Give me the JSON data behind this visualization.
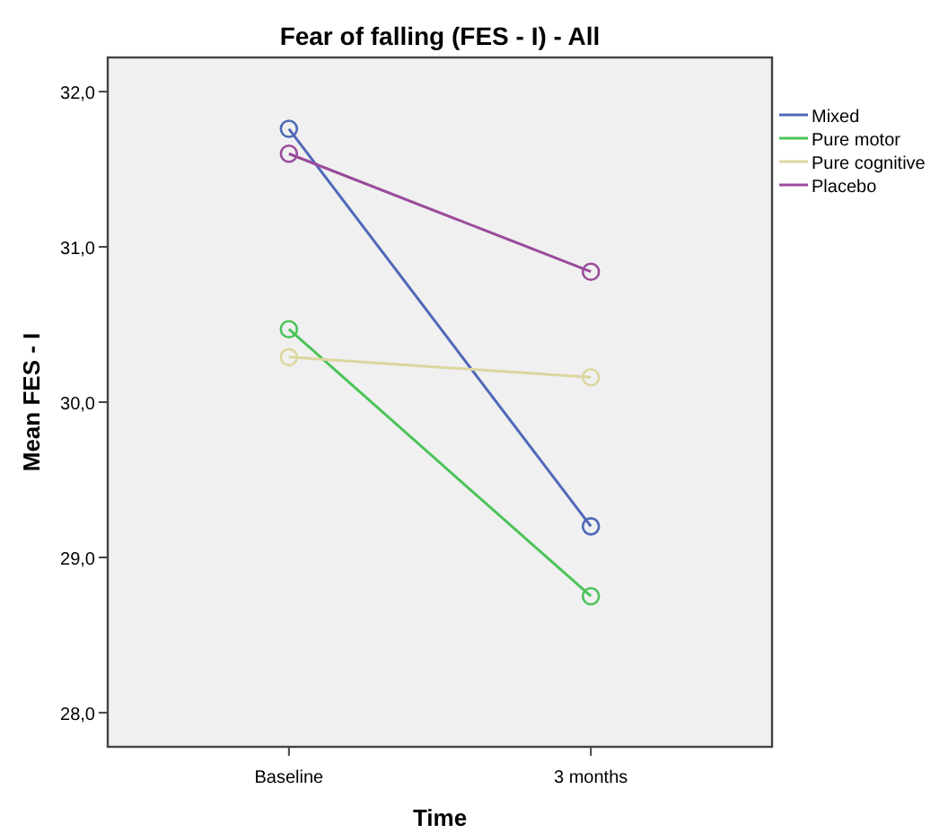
{
  "chart_data": {
    "type": "line",
    "title": "Fear of falling (FES - I) - All",
    "xlabel": "Time",
    "ylabel": "Mean FES - I",
    "categories": [
      "Baseline",
      "3 months"
    ],
    "series": [
      {
        "name": "Mixed",
        "color": "#5068b8",
        "values": [
          31.76,
          29.2
        ]
      },
      {
        "name": "Pure motor",
        "color": "#4cc35a",
        "values": [
          30.47,
          28.75
        ]
      },
      {
        "name": "Pure cognitive",
        "color": "#dcd6a0",
        "values": [
          30.29,
          30.16
        ]
      },
      {
        "name": "Placebo",
        "color": "#9a4a9c",
        "values": [
          31.6,
          30.84
        ]
      }
    ],
    "ylim": [
      27.78,
      32.22
    ],
    "yticks": [
      {
        "value": 28,
        "label": "28,0"
      },
      {
        "value": 29,
        "label": "29,0"
      },
      {
        "value": 30,
        "label": "30,0"
      },
      {
        "value": 31,
        "label": "31,0"
      },
      {
        "value": 32,
        "label": "32,0"
      }
    ],
    "grid": false,
    "legend": "top right",
    "marker": "circle",
    "line_style": "solid"
  }
}
